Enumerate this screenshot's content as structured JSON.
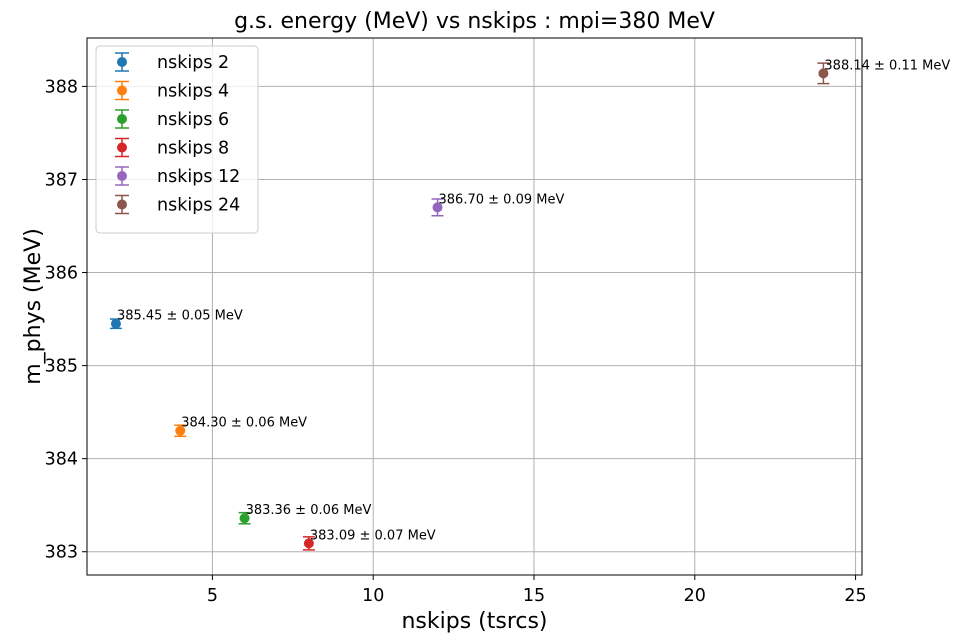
{
  "chart_data": {
    "type": "scatter",
    "title": "g.s. energy (MeV) vs nskips : mpi=380 MeV",
    "xlabel": "nskips (tsrcs)",
    "ylabel": "m_phys (MeV)",
    "xlim": [
      1.1,
      25.2
    ],
    "ylim": [
      382.75,
      388.52
    ],
    "xticks": [
      5,
      10,
      15,
      20,
      25
    ],
    "yticks": [
      383,
      384,
      385,
      386,
      387,
      388
    ],
    "grid": true,
    "legend_position": "top-left",
    "series": [
      {
        "name": "nskips 2",
        "x": 2,
        "y": 385.45,
        "err": 0.05,
        "annotation": "385.45 ± 0.05 MeV",
        "color": "#1f77b4"
      },
      {
        "name": "nskips 4",
        "x": 4,
        "y": 384.3,
        "err": 0.06,
        "annotation": "384.30 ± 0.06 MeV",
        "color": "#ff7f0e"
      },
      {
        "name": "nskips 6",
        "x": 6,
        "y": 383.36,
        "err": 0.06,
        "annotation": "383.36 ± 0.06 MeV",
        "color": "#2ca02c"
      },
      {
        "name": "nskips 8",
        "x": 8,
        "y": 383.09,
        "err": 0.07,
        "annotation": "383.09 ± 0.07 MeV",
        "color": "#d62728"
      },
      {
        "name": "nskips 12",
        "x": 12,
        "y": 386.7,
        "err": 0.09,
        "annotation": "386.70 ± 0.09 MeV",
        "color": "#9467bd"
      },
      {
        "name": "nskips 24",
        "x": 24,
        "y": 388.14,
        "err": 0.11,
        "annotation": "388.14 ± 0.11 MeV",
        "color": "#8c564b"
      }
    ]
  }
}
